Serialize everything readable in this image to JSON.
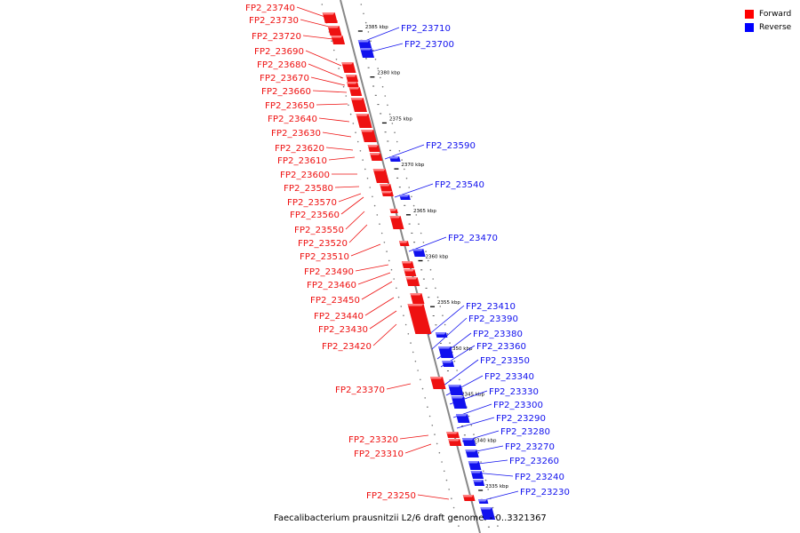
{
  "legend": [
    {
      "label": "Forward",
      "color": "#ff0000"
    },
    {
      "label": "Reverse",
      "color": "#0000ff"
    }
  ],
  "colors": {
    "forward": "#ee1111",
    "forward_light": "#ff8080",
    "reverse": "#1111ee",
    "reverse_light": "#8080ff",
    "axis": "#888888"
  },
  "caption": {
    "genome": "Faecalibacterium prausnitzii L2/6 draft genome.",
    "range": "- 0..3321367"
  },
  "ticks": [
    {
      "label": "2385 kbp",
      "kbp": 2385
    },
    {
      "label": "2380 kbp",
      "kbp": 2380
    },
    {
      "label": "2375 kbp",
      "kbp": 2375
    },
    {
      "label": "2370 kbp",
      "kbp": 2370
    },
    {
      "label": "2365 kbp",
      "kbp": 2365
    },
    {
      "label": "2360 kbp",
      "kbp": 2360
    },
    {
      "label": "2355 kbp",
      "kbp": 2355
    },
    {
      "label": "2350 kbp",
      "kbp": 2350
    },
    {
      "label": "2345 kbp",
      "kbp": 2345
    },
    {
      "label": "2340 kbp",
      "kbp": 2340
    },
    {
      "label": "2335 kbp",
      "kbp": 2335
    }
  ],
  "forward_labels": [
    "FP2_23740",
    "FP2_23730",
    "FP2_23720",
    "FP2_23690",
    "FP2_23680",
    "FP2_23670",
    "FP2_23660",
    "FP2_23650",
    "FP2_23640",
    "FP2_23630",
    "FP2_23620",
    "FP2_23610",
    "FP2_23600",
    "FP2_23580",
    "FP2_23570",
    "FP2_23560",
    "FP2_23550",
    "FP2_23520",
    "FP2_23510",
    "FP2_23490",
    "FP2_23460",
    "FP2_23450",
    "FP2_23440",
    "FP2_23430",
    "FP2_23420",
    "FP2_23370",
    "FP2_23320",
    "FP2_23310",
    "FP2_23250"
  ],
  "reverse_labels": [
    "FP2_23710",
    "FP2_23700",
    "FP2_23590",
    "FP2_23540",
    "FP2_23470",
    "FP2_23410",
    "FP2_23390",
    "FP2_23380",
    "FP2_23360",
    "FP2_23350",
    "FP2_23340",
    "FP2_23330",
    "FP2_23300",
    "FP2_23290",
    "FP2_23280",
    "FP2_23270",
    "FP2_23260",
    "FP2_23240",
    "FP2_23230"
  ]
}
